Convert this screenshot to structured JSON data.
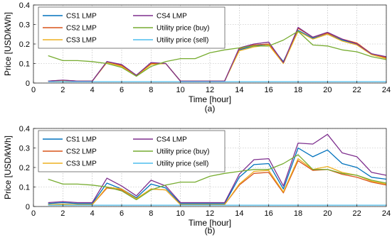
{
  "colors": {
    "CS1": "#0072BD",
    "CS2": "#D95319",
    "CS3": "#EDB120",
    "CS4": "#7E2F8E",
    "buy": "#77AC30",
    "sell": "#4DBEEE"
  },
  "chart_data": [
    {
      "type": "line",
      "caption": "(a)",
      "xlabel": "Time [hour]",
      "ylabel": "Price [USD/kWh]",
      "xlim": [
        0,
        24
      ],
      "ylim": [
        0,
        0.4
      ],
      "xticks": [
        0,
        2,
        4,
        6,
        8,
        10,
        12,
        14,
        16,
        18,
        20,
        22,
        24
      ],
      "yticks": [
        0,
        0.1,
        0.2,
        0.3,
        0.4
      ],
      "ytick_labels": [
        "0",
        "0.1",
        "0.2",
        "0.3",
        "0.4"
      ],
      "grid": true,
      "legend_position": "top-left",
      "x": [
        1,
        2,
        3,
        4,
        5,
        6,
        7,
        8,
        9,
        10,
        11,
        12,
        13,
        14,
        15,
        16,
        17,
        18,
        19,
        20,
        21,
        22,
        23,
        24
      ],
      "series": [
        {
          "name": "CS1 LMP",
          "key": "CS1",
          "values": [
            0.01,
            0.013,
            0.01,
            0.01,
            0.11,
            0.09,
            0.04,
            0.1,
            0.1,
            0.01,
            0.01,
            0.01,
            0.01,
            0.17,
            0.19,
            0.2,
            0.11,
            0.27,
            0.23,
            0.25,
            0.22,
            0.2,
            0.15,
            0.13
          ]
        },
        {
          "name": "CS2 LMP",
          "key": "CS2",
          "values": [
            0.01,
            0.014,
            0.01,
            0.01,
            0.11,
            0.09,
            0.04,
            0.1,
            0.1,
            0.01,
            0.01,
            0.01,
            0.01,
            0.175,
            0.195,
            0.2,
            0.105,
            0.28,
            0.235,
            0.255,
            0.225,
            0.205,
            0.15,
            0.13
          ]
        },
        {
          "name": "CS3 LMP",
          "key": "CS3",
          "values": [
            0.01,
            0.013,
            0.01,
            0.01,
            0.105,
            0.085,
            0.035,
            0.095,
            0.1,
            0.01,
            0.01,
            0.01,
            0.01,
            0.165,
            0.185,
            0.195,
            0.1,
            0.265,
            0.225,
            0.25,
            0.215,
            0.195,
            0.145,
            0.125
          ]
        },
        {
          "name": "CS4 LMP",
          "key": "CS4",
          "values": [
            0.01,
            0.015,
            0.01,
            0.01,
            0.11,
            0.095,
            0.04,
            0.105,
            0.1,
            0.01,
            0.01,
            0.01,
            0.01,
            0.18,
            0.2,
            0.21,
            0.105,
            0.285,
            0.235,
            0.26,
            0.225,
            0.2,
            0.15,
            0.135
          ]
        },
        {
          "name": "Utility price (buy)",
          "key": "buy",
          "values": [
            0.14,
            0.115,
            0.115,
            0.11,
            0.1,
            0.08,
            0.035,
            0.085,
            0.11,
            0.125,
            0.125,
            0.155,
            0.17,
            0.18,
            0.19,
            0.19,
            0.22,
            0.265,
            0.195,
            0.19,
            0.17,
            0.16,
            0.135,
            0.12
          ]
        },
        {
          "name": "Utility price (sell)",
          "key": "sell",
          "values": [
            0.007,
            0.007,
            0.007,
            0.007,
            0.007,
            0.007,
            0.007,
            0.007,
            0.007,
            0.007,
            0.007,
            0.007,
            0.007,
            0.007,
            0.007,
            0.007,
            0.007,
            0.007,
            0.007,
            0.007,
            0.007,
            0.007,
            0.007,
            0.007
          ]
        }
      ]
    },
    {
      "type": "line",
      "caption": "(b)",
      "xlabel": "Time [hour]",
      "ylabel": "Price [USD/kWh]",
      "xlim": [
        0,
        24
      ],
      "ylim": [
        0,
        0.4
      ],
      "xticks": [
        0,
        2,
        4,
        6,
        8,
        10,
        12,
        14,
        16,
        18,
        20,
        22,
        24
      ],
      "yticks": [
        0,
        0.1,
        0.2,
        0.3,
        0.4
      ],
      "ytick_labels": [
        "0",
        "0.1",
        "0.2",
        "0.3",
        "0.4"
      ],
      "grid": true,
      "legend_position": "top-left",
      "x": [
        1,
        2,
        3,
        4,
        5,
        6,
        7,
        8,
        9,
        10,
        11,
        12,
        13,
        14,
        15,
        16,
        17,
        18,
        19,
        20,
        21,
        22,
        23,
        24
      ],
      "series": [
        {
          "name": "CS1 LMP",
          "key": "CS1",
          "values": [
            0.015,
            0.02,
            0.015,
            0.015,
            0.12,
            0.09,
            0.045,
            0.115,
            0.095,
            0.015,
            0.015,
            0.015,
            0.015,
            0.15,
            0.215,
            0.22,
            0.09,
            0.3,
            0.255,
            0.29,
            0.22,
            0.2,
            0.15,
            0.14
          ]
        },
        {
          "name": "CS2 LMP",
          "key": "CS2",
          "values": [
            0.01,
            0.01,
            0.01,
            0.01,
            0.095,
            0.085,
            0.04,
            0.09,
            0.085,
            0.01,
            0.01,
            0.01,
            0.01,
            0.11,
            0.17,
            0.175,
            0.07,
            0.235,
            0.185,
            0.19,
            0.165,
            0.15,
            0.125,
            0.11
          ]
        },
        {
          "name": "CS3 LMP",
          "key": "CS3",
          "values": [
            0.01,
            0.012,
            0.01,
            0.01,
            0.1,
            0.09,
            0.04,
            0.09,
            0.085,
            0.01,
            0.01,
            0.01,
            0.01,
            0.115,
            0.18,
            0.185,
            0.075,
            0.245,
            0.19,
            0.205,
            0.175,
            0.16,
            0.13,
            0.115
          ]
        },
        {
          "name": "CS4 LMP",
          "key": "CS4",
          "values": [
            0.02,
            0.025,
            0.02,
            0.02,
            0.145,
            0.105,
            0.055,
            0.135,
            0.105,
            0.02,
            0.02,
            0.02,
            0.02,
            0.165,
            0.24,
            0.245,
            0.105,
            0.325,
            0.32,
            0.37,
            0.275,
            0.255,
            0.175,
            0.16
          ]
        },
        {
          "name": "Utility price (buy)",
          "key": "buy",
          "values": [
            0.14,
            0.115,
            0.115,
            0.11,
            0.1,
            0.08,
            0.035,
            0.085,
            0.11,
            0.125,
            0.125,
            0.155,
            0.17,
            0.18,
            0.19,
            0.19,
            0.22,
            0.265,
            0.19,
            0.19,
            0.17,
            0.16,
            0.135,
            0.12
          ]
        },
        {
          "name": "Utility price (sell)",
          "key": "sell",
          "values": [
            0.007,
            0.007,
            0.007,
            0.007,
            0.007,
            0.007,
            0.007,
            0.007,
            0.007,
            0.007,
            0.007,
            0.007,
            0.007,
            0.007,
            0.007,
            0.007,
            0.007,
            0.007,
            0.007,
            0.007,
            0.007,
            0.007,
            0.007,
            0.007
          ]
        }
      ]
    }
  ]
}
